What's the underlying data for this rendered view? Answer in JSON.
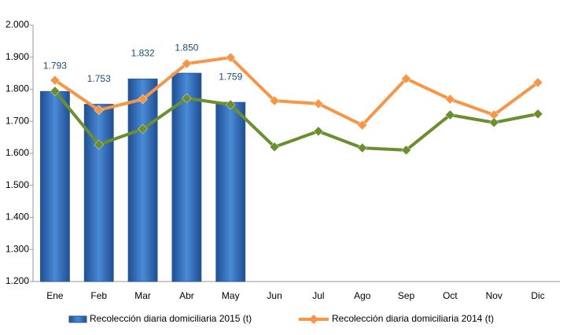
{
  "chart_data": {
    "type": "bar",
    "categories": [
      "Ene",
      "Feb",
      "Mar",
      "Abr",
      "May",
      "Jun",
      "Jul",
      "Ago",
      "Sep",
      "Oct",
      "Nov",
      "Dic"
    ],
    "series": [
      {
        "name": "Recolección diaria domiciliaria 2015 (t)",
        "type": "bar",
        "color": "#3a78c4",
        "values": [
          1793,
          1753,
          1832,
          1850,
          1759,
          null,
          null,
          null,
          null,
          null,
          null,
          null
        ],
        "value_labels": [
          "1.793",
          "1.753",
          "1.832",
          "1.850",
          "1.759",
          null,
          null,
          null,
          null,
          null,
          null,
          null
        ]
      },
      {
        "name": "Recolección diaria domiciliaria 2014 (t)",
        "type": "line",
        "color": "#f79646",
        "values": [
          1828,
          1735,
          1769,
          1880,
          1899,
          1764,
          1755,
          1688,
          1833,
          1769,
          1720,
          1821
        ]
      },
      {
        "type": "line",
        "color": "#6b8e2f",
        "values": [
          1794,
          1627,
          1676,
          1772,
          1752,
          1620,
          1669,
          1617,
          1610,
          1720,
          1696,
          1723
        ]
      }
    ],
    "ylim": [
      1200,
      2000
    ],
    "yticks": [
      {
        "value": 1200,
        "label": "1.200"
      },
      {
        "value": 1300,
        "label": "1.300"
      },
      {
        "value": 1400,
        "label": "1.400"
      },
      {
        "value": 1500,
        "label": "1.500"
      },
      {
        "value": 1600,
        "label": "1.600"
      },
      {
        "value": 1700,
        "label": "1.700"
      },
      {
        "value": 1800,
        "label": "1.800"
      },
      {
        "value": 1900,
        "label": "1.900"
      },
      {
        "value": 2000,
        "label": "2.000"
      }
    ],
    "grid": false
  }
}
